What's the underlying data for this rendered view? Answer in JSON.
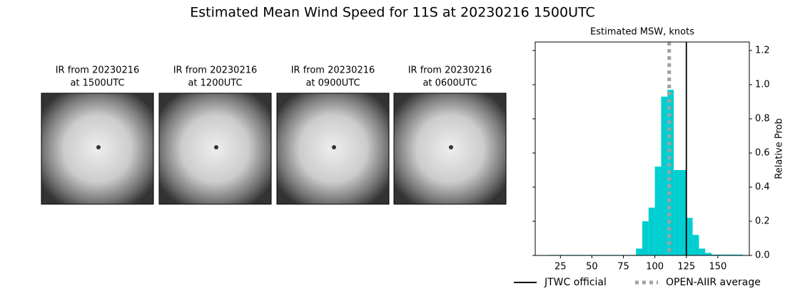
{
  "title": "Estimated Mean Wind Speed for 11S at 20230216 1500UTC",
  "images": [
    {
      "title_line1": "IR from 20230216",
      "title_line2": "at 1500UTC"
    },
    {
      "title_line1": "IR from 20230216",
      "title_line2": "at 1200UTC"
    },
    {
      "title_line1": "IR from 20230216",
      "title_line2": "at 0900UTC"
    },
    {
      "title_line1": "IR from 20230216",
      "title_line2": "at 0600UTC"
    }
  ],
  "chart_data": {
    "type": "histogram",
    "title": "Estimated MSW, knots",
    "y_label": "Relative Prob",
    "color": "#00ced1",
    "bins": [
      15,
      20,
      25,
      30,
      35,
      40,
      45,
      50,
      55,
      60,
      65,
      70,
      75,
      80,
      85,
      90,
      95,
      100,
      105,
      110,
      115,
      120,
      125,
      130,
      135,
      140,
      145,
      150,
      155,
      160,
      165,
      170
    ],
    "values": [
      0.003,
      0.003,
      0.003,
      0.003,
      0.003,
      0.003,
      0.003,
      0.003,
      0.003,
      0.003,
      0.003,
      0.003,
      0.003,
      0.003,
      0.04,
      0.2,
      0.28,
      0.52,
      0.93,
      0.97,
      0.5,
      0.5,
      0.22,
      0.12,
      0.04,
      0.015,
      0.005,
      0.005,
      0.005,
      0.005,
      0.005
    ],
    "xlim": [
      5,
      175
    ],
    "ylim": [
      0,
      1.25
    ],
    "xticks": [
      25,
      50,
      75,
      100,
      125,
      150
    ],
    "yticks": [
      {
        "value": 0,
        "label": "0.0"
      },
      {
        "value": 0.2,
        "label": "0.2"
      },
      {
        "value": 0.4,
        "label": "0.4"
      },
      {
        "value": 0.6,
        "label": "0.6"
      },
      {
        "value": 0.8,
        "label": "0.8"
      },
      {
        "value": 1.0,
        "label": "1.0"
      },
      {
        "value": 1.2,
        "label": "1.2"
      }
    ],
    "lines": [
      {
        "name": "JTWC official",
        "x": 125,
        "color": "#000000",
        "style": "solid"
      },
      {
        "name": "OPEN-AIIR average",
        "x": 111.4,
        "color": "#a0a0a0",
        "style": "dotted"
      }
    ]
  }
}
